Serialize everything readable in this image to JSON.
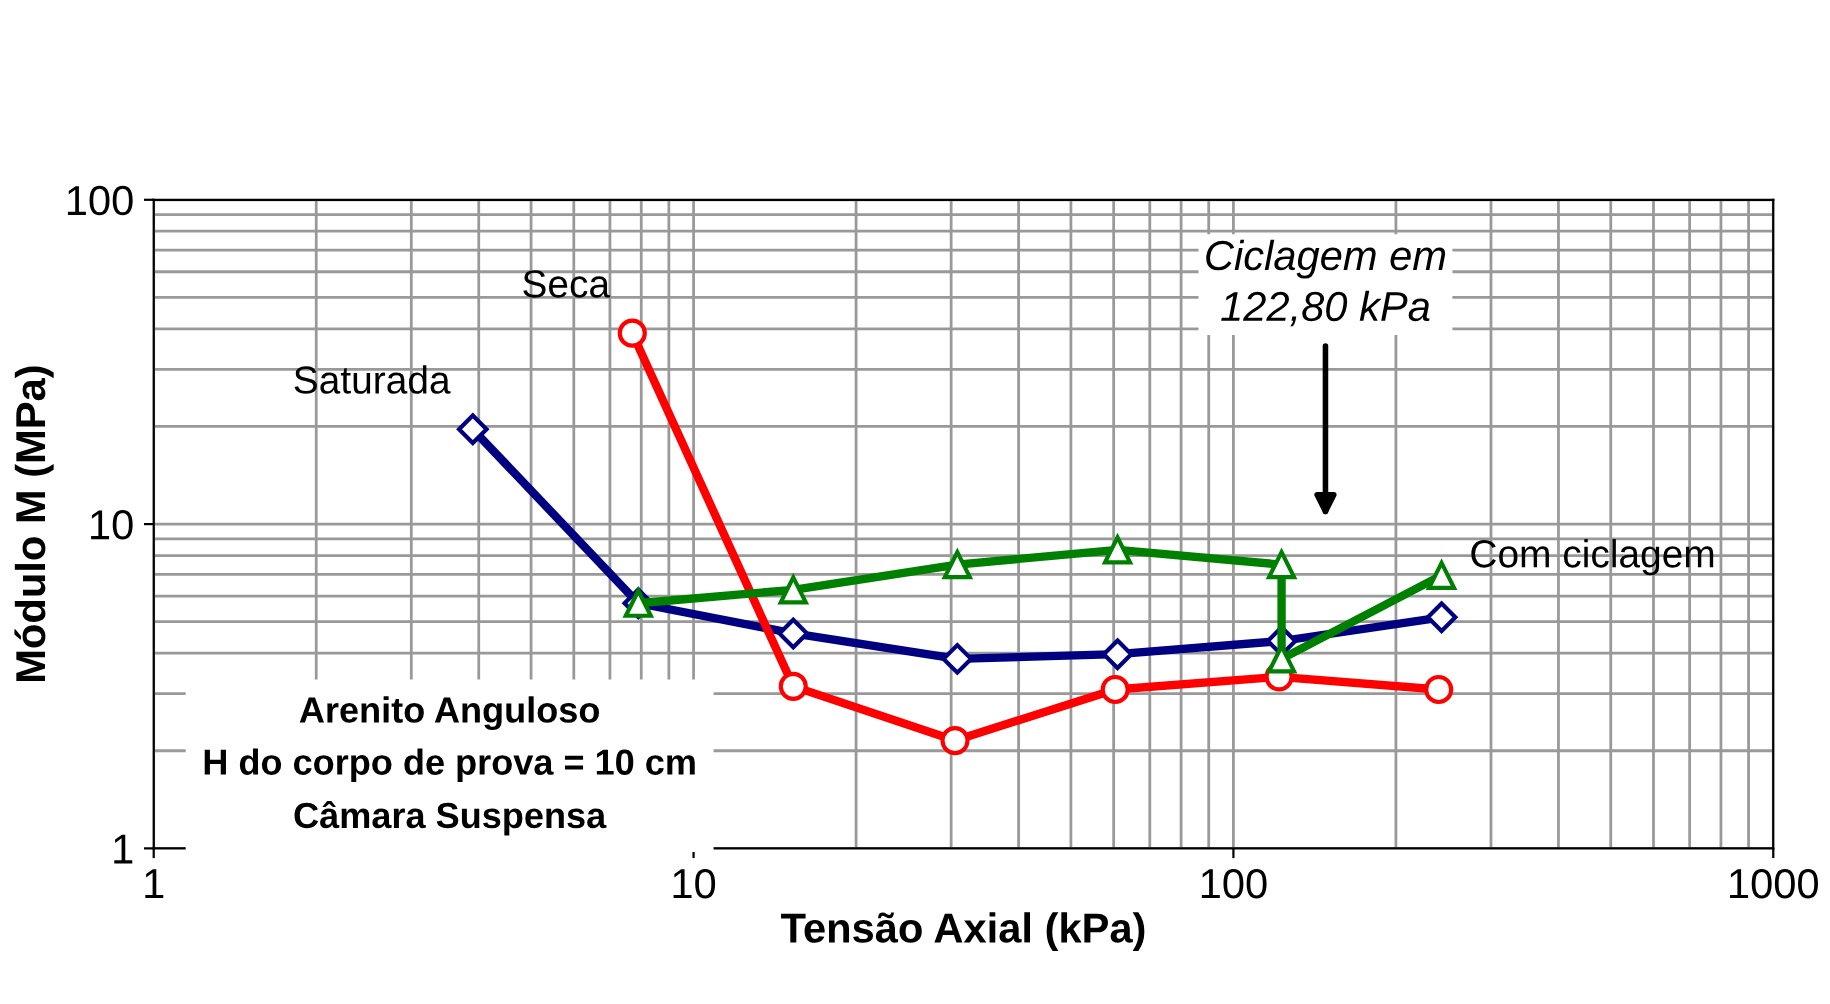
{
  "chart_data": {
    "type": "line",
    "xlabel": "Tensão Axial (kPa)",
    "ylabel": "Módulo M (MPa)",
    "log": "xy",
    "xlim": [
      1,
      1000
    ],
    "ylim": [
      1,
      100
    ],
    "xticks": [
      1,
      10,
      100,
      1000
    ],
    "yticks": [
      1,
      10,
      100
    ],
    "grid": true,
    "legend": false,
    "line_style": "solid",
    "series": [
      {
        "name": "Saturada",
        "color": "#000080",
        "marker": "diamond",
        "x": [
          3.9,
          7.9,
          15.3,
          30.8,
          61,
          122.8,
          243
        ],
        "values": [
          19.6,
          5.7,
          4.6,
          3.84,
          3.97,
          4.36,
          5.16
        ]
      },
      {
        "name": "Seca",
        "color": "#ff0000",
        "marker": "circle",
        "x": [
          7.7,
          15.3,
          30.5,
          60.4,
          121.5,
          240
        ],
        "values": [
          38.8,
          3.16,
          2.15,
          3.09,
          3.38,
          3.09
        ]
      },
      {
        "name": "Com ciclagem",
        "color": "#008000",
        "marker": "triangle",
        "x": [
          7.9,
          15.3,
          30.8,
          61,
          122.8,
          122.8,
          243
        ],
        "values": [
          5.7,
          6.27,
          7.5,
          8.33,
          7.5,
          3.84,
          6.95
        ]
      }
    ],
    "annotations": [
      "Ciclagem em\n122,80 kPa",
      "Arenito Anguloso\nH do corpo de prova = 10 cm\nCâmara Suspensa"
    ]
  }
}
